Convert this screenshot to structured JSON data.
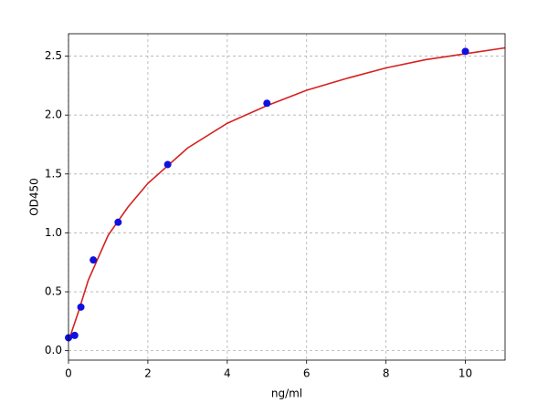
{
  "chart_data": {
    "type": "scatter",
    "xlabel": "ng/ml",
    "ylabel": "OD450",
    "xlim": [
      0,
      11
    ],
    "ylim": [
      -0.08,
      2.69
    ],
    "xticks": [
      0,
      2,
      4,
      6,
      8,
      10
    ],
    "yticks": [
      {
        "value": 0,
        "label": "0.0"
      },
      0.5,
      {
        "value": 1,
        "label": "1.0"
      },
      1.5,
      {
        "value": 2,
        "label": "2.0"
      },
      2.5
    ],
    "grid": true,
    "series": [
      {
        "type": "scatter",
        "color": "#1010e0",
        "x": [
          0,
          0.156,
          0.312,
          0.625,
          1.25,
          2.5,
          5,
          10
        ],
        "values": [
          0.11,
          0.13,
          0.37,
          0.77,
          1.09,
          1.58,
          2.1,
          2.54
        ]
      },
      {
        "type": "line",
        "color": "#d62020",
        "x": [
          0,
          0.25,
          0.5,
          1,
          1.5,
          2,
          3,
          4,
          5,
          6,
          7,
          8,
          9,
          10,
          11
        ],
        "values": [
          0.08,
          0.33,
          0.6,
          0.98,
          1.22,
          1.42,
          1.72,
          1.93,
          2.08,
          2.21,
          2.31,
          2.4,
          2.47,
          2.52,
          2.57
        ]
      }
    ]
  }
}
